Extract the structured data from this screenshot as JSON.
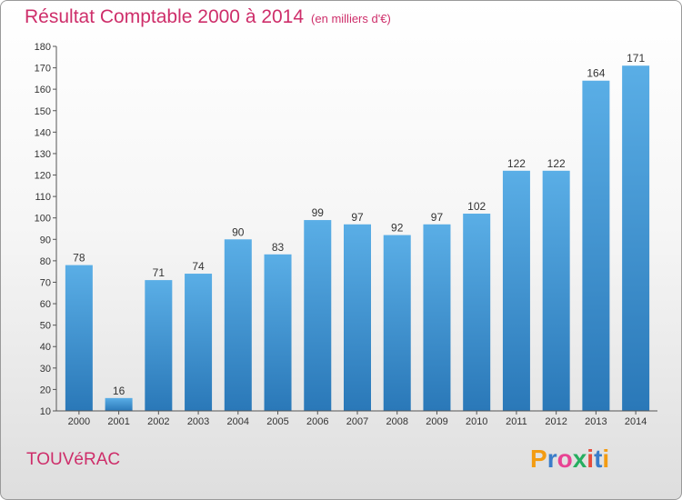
{
  "chart_data": {
    "type": "bar",
    "title": "Résultat Comptable 2000 à 2014",
    "subtitle": "(en milliers d'€)",
    "categories": [
      "2000",
      "2001",
      "2002",
      "2003",
      "2004",
      "2005",
      "2006",
      "2007",
      "2008",
      "2009",
      "2010",
      "2011",
      "2012",
      "2013",
      "2014"
    ],
    "values": [
      78,
      16,
      71,
      74,
      90,
      83,
      99,
      97,
      92,
      97,
      102,
      122,
      122,
      164,
      171
    ],
    "ylim": [
      10,
      180
    ],
    "yticks": [
      10,
      20,
      30,
      40,
      50,
      60,
      70,
      80,
      90,
      100,
      110,
      120,
      130,
      140,
      150,
      160,
      170,
      180
    ],
    "xlabel": "",
    "ylabel": "",
    "grid": false,
    "bar_color": "#3d8fd6"
  },
  "location": "TOUVéRAC",
  "logo": {
    "text": "Proxiti",
    "letters": [
      {
        "ch": "P",
        "color": "#f39c12"
      },
      {
        "ch": "r",
        "color": "#3a7dc9"
      },
      {
        "ch": "o",
        "color": "#e84393"
      },
      {
        "ch": "x",
        "color": "#27ae60"
      },
      {
        "ch": "i",
        "color": "#e74c3c"
      },
      {
        "ch": "t",
        "color": "#3a7dc9"
      },
      {
        "ch": "i",
        "color": "#f39c12"
      }
    ]
  },
  "colors": {
    "title": "#ce2e6a",
    "bar_top": "#5aaee6",
    "bar_bottom": "#2a78b8"
  }
}
